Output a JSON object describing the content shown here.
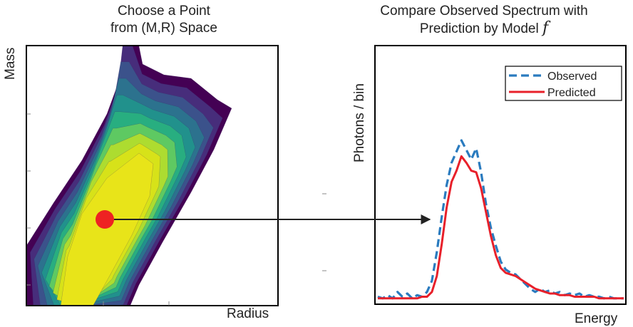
{
  "left_panel": {
    "title_line1": "Choose a Point",
    "title_line2": "from (M,R) Space",
    "xlabel": "Radius",
    "ylabel": "Mass",
    "point_color": "#ee2222",
    "contour_colors": [
      "#440154",
      "#472d7b",
      "#3b528b",
      "#2c728e",
      "#21918c",
      "#28ae80",
      "#5ec962",
      "#addc30",
      "#d7e219",
      "#e8e419"
    ]
  },
  "right_panel": {
    "title_line1": "Compare Observed Spectrum with",
    "title_line2": "Prediction by Model ",
    "model_symbol": "f",
    "xlabel": "Energy",
    "ylabel": "Photons / bin"
  },
  "chart_data": {
    "type": "line",
    "xlabel": "Energy",
    "ylabel": "Photons / bin",
    "legend_position": "top-right",
    "series": [
      {
        "name": "Observed",
        "style": "dashed",
        "color": "#2a7bbf",
        "x": [
          0,
          2,
          4,
          6,
          8,
          10,
          12,
          14,
          16,
          18,
          20,
          22,
          24,
          26,
          28,
          30,
          32,
          34,
          36,
          38,
          40,
          42,
          44,
          46,
          48,
          50,
          52,
          54,
          56,
          58,
          60,
          62,
          64,
          66,
          68,
          70,
          72,
          74,
          76,
          78,
          80,
          82,
          84,
          86,
          88,
          90,
          92,
          94,
          96,
          98,
          100
        ],
        "y": [
          0.02,
          0.01,
          0.03,
          0.01,
          0.05,
          0.02,
          0.04,
          0.01,
          0.03,
          0.02,
          0.05,
          0.12,
          0.3,
          0.52,
          0.72,
          0.86,
          0.93,
          1.0,
          0.94,
          0.88,
          0.95,
          0.8,
          0.6,
          0.45,
          0.34,
          0.24,
          0.19,
          0.17,
          0.16,
          0.13,
          0.1,
          0.07,
          0.05,
          0.07,
          0.05,
          0.06,
          0.04,
          0.05,
          0.03,
          0.04,
          0.03,
          0.04,
          0.02,
          0.03,
          0.02,
          0.02,
          0.01,
          0.02,
          0.01,
          0.01,
          0.01
        ]
      },
      {
        "name": "Predicted",
        "style": "solid",
        "color": "#e8202a",
        "x": [
          0,
          2,
          4,
          6,
          8,
          10,
          12,
          14,
          16,
          18,
          20,
          22,
          24,
          26,
          28,
          30,
          32,
          34,
          36,
          38,
          40,
          42,
          44,
          46,
          48,
          50,
          52,
          54,
          56,
          58,
          60,
          62,
          64,
          66,
          68,
          70,
          72,
          74,
          76,
          78,
          80,
          82,
          84,
          86,
          88,
          90,
          92,
          94,
          96,
          98,
          100
        ],
        "y": [
          0.01,
          0.01,
          0.01,
          0.01,
          0.01,
          0.01,
          0.01,
          0.01,
          0.01,
          0.02,
          0.02,
          0.05,
          0.15,
          0.35,
          0.58,
          0.74,
          0.81,
          0.9,
          0.86,
          0.81,
          0.8,
          0.7,
          0.55,
          0.4,
          0.28,
          0.2,
          0.17,
          0.16,
          0.15,
          0.13,
          0.11,
          0.09,
          0.07,
          0.06,
          0.05,
          0.04,
          0.04,
          0.03,
          0.03,
          0.03,
          0.02,
          0.02,
          0.02,
          0.02,
          0.02,
          0.01,
          0.01,
          0.01,
          0.01,
          0.01,
          0.01
        ]
      }
    ]
  }
}
